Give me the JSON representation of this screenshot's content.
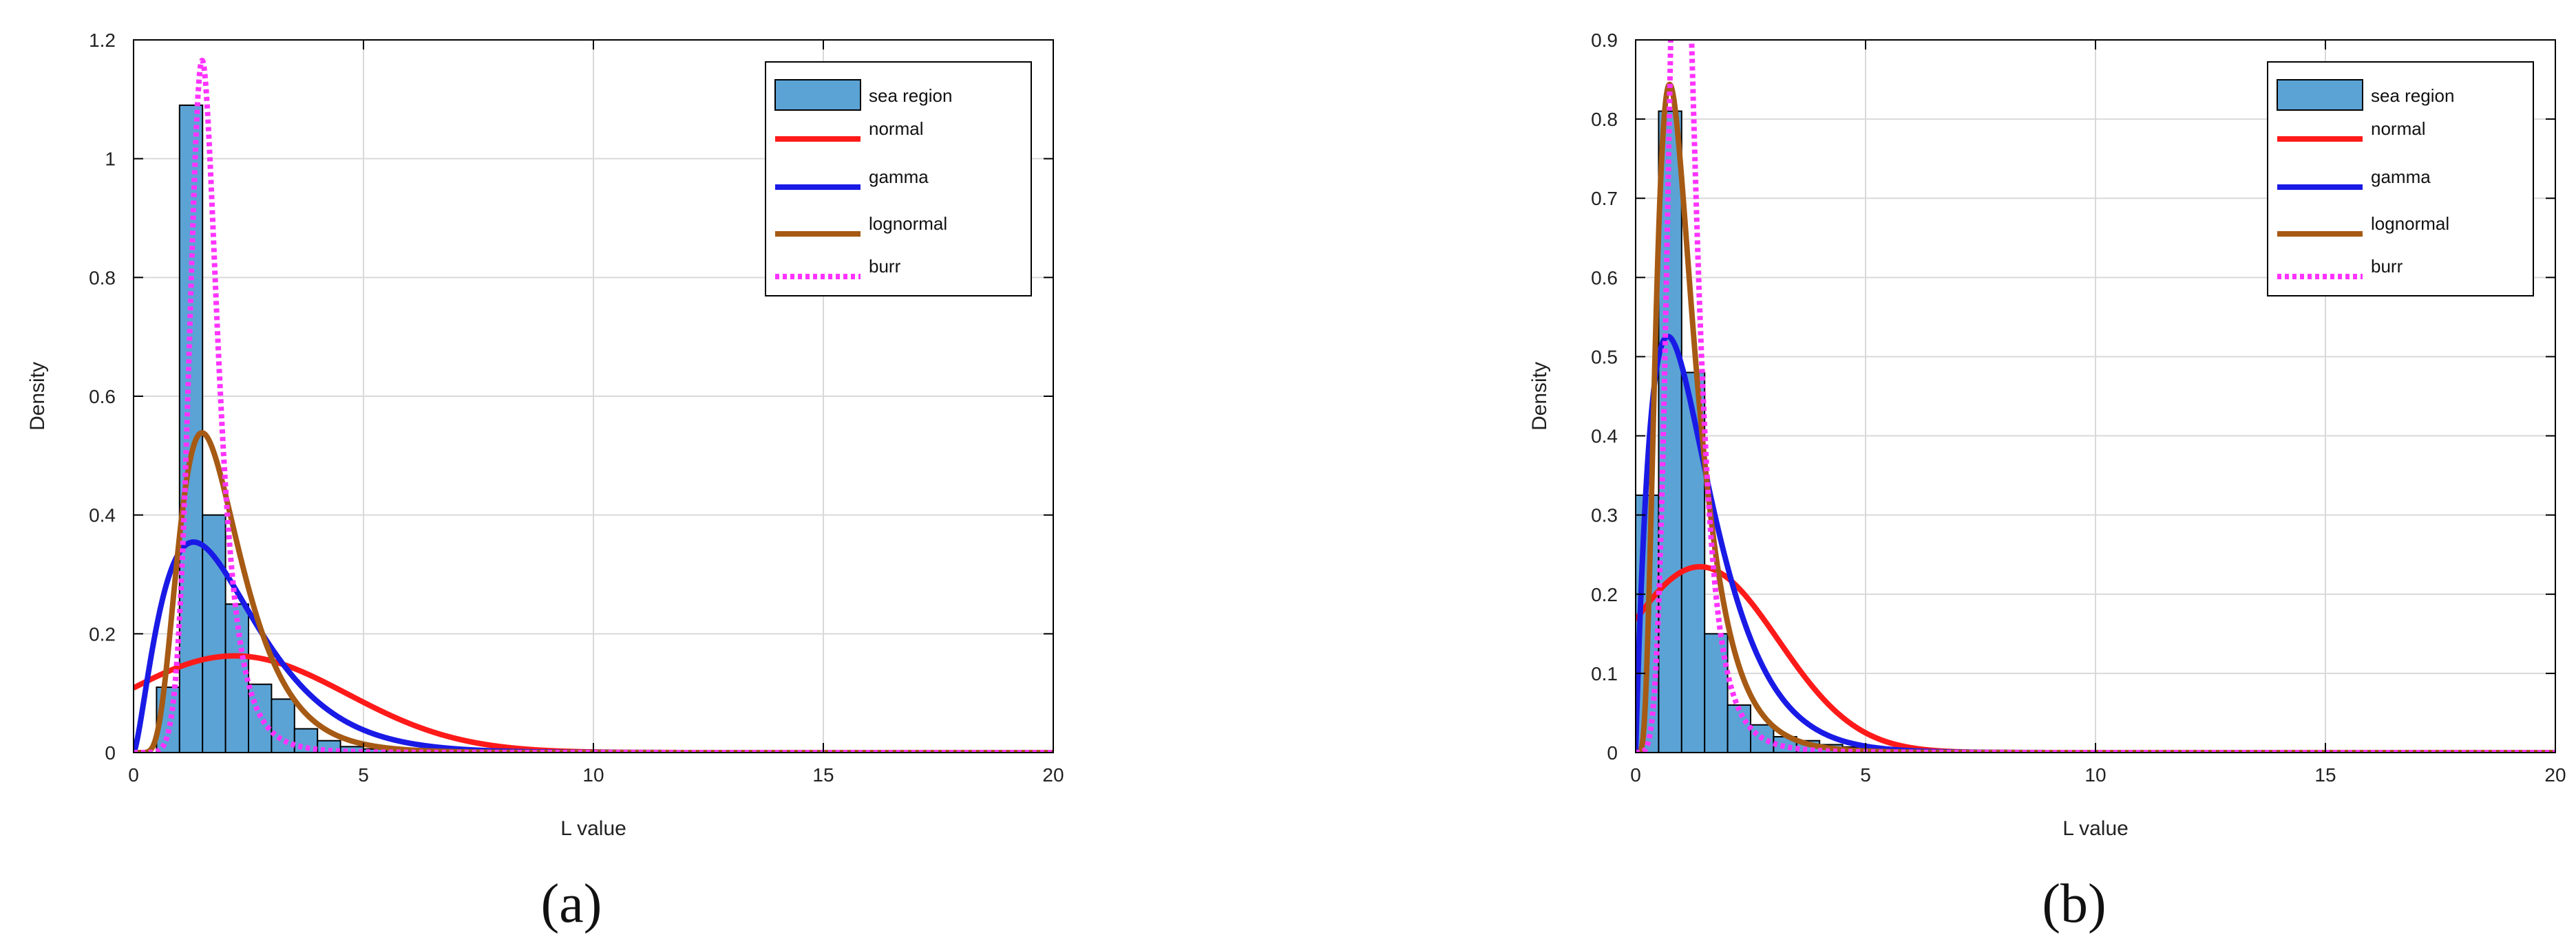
{
  "colors": {
    "hist_fill": "#5BA3D5",
    "hist_edge": "#000000",
    "normal": "#FF1A1A",
    "gamma": "#1A1AE6",
    "lognormal": "#A65A14",
    "burr": "#FF33FF",
    "grid": "#D9D9D9"
  },
  "chart_data": [
    {
      "type": "bar",
      "panel_label": "(a)",
      "xlabel": "L value",
      "ylabel": "Density",
      "xlim": [
        0,
        20
      ],
      "ylim": [
        0,
        1.2
      ],
      "xticks": [
        0,
        5,
        10,
        15,
        20
      ],
      "yticks": [
        0,
        0.2,
        0.4,
        0.6,
        0.8,
        1,
        1.2
      ],
      "xtick_labels": [
        "0",
        "5",
        "10",
        "15",
        "20"
      ],
      "ytick_labels": [
        "0",
        "0.2",
        "0.4",
        "0.6",
        "0.8",
        "1",
        "1.2"
      ],
      "grid": true,
      "legend_position": "top-right",
      "histogram": {
        "name": "sea region",
        "bin_edges": [
          0,
          0.5,
          1.0,
          1.5,
          2.0,
          2.5,
          3.0,
          3.5,
          4.0,
          4.5,
          5.0,
          5.5,
          6.0,
          6.5,
          7.0
        ],
        "density": [
          0.0,
          0.11,
          1.09,
          0.4,
          0.25,
          0.115,
          0.09,
          0.04,
          0.02,
          0.01,
          0.006,
          0.004,
          0.002,
          0.001
        ]
      },
      "curves": [
        {
          "name": "normal",
          "dist": "normal",
          "mu": 2.2,
          "sigma": 2.45
        },
        {
          "name": "gamma",
          "dist": "gamma",
          "k": 2.5,
          "theta": 0.87
        },
        {
          "name": "lognormal",
          "dist": "lognormal",
          "mu": 0.6,
          "sigma": 0.45
        },
        {
          "name": "burr",
          "dist": "burr",
          "alpha": 1.48,
          "c": 8.0,
          "k": 0.7
        }
      ]
    },
    {
      "type": "bar",
      "panel_label": "(b)",
      "xlabel": "L value",
      "ylabel": "Density",
      "xlim": [
        0,
        20
      ],
      "ylim": [
        0,
        0.9
      ],
      "xticks": [
        0,
        5,
        10,
        15,
        20
      ],
      "yticks": [
        0,
        0.1,
        0.2,
        0.3,
        0.4,
        0.5,
        0.6,
        0.7,
        0.8,
        0.9
      ],
      "xtick_labels": [
        "0",
        "5",
        "10",
        "15",
        "20"
      ],
      "ytick_labels": [
        "0",
        "0.1",
        "0.2",
        "0.3",
        "0.4",
        "0.5",
        "0.6",
        "0.7",
        "0.8",
        "0.9"
      ],
      "grid": true,
      "legend_position": "top-right",
      "histogram": {
        "name": "sea region",
        "bin_edges": [
          0,
          0.5,
          1.0,
          1.5,
          2.0,
          2.5,
          3.0,
          3.5,
          4.0,
          4.5,
          5.0,
          5.5,
          6.0
        ],
        "density": [
          0.325,
          0.81,
          0.48,
          0.15,
          0.06,
          0.035,
          0.02,
          0.015,
          0.01,
          0.007,
          0.004,
          0.002
        ]
      },
      "curves": [
        {
          "name": "normal",
          "dist": "normal",
          "mu": 1.4,
          "sigma": 1.7
        },
        {
          "name": "gamma",
          "dist": "gamma",
          "k": 2.0,
          "theta": 0.7
        },
        {
          "name": "lognormal",
          "dist": "lognormal",
          "mu": 0.0,
          "sigma": 0.55
        },
        {
          "name": "burr",
          "dist": "burr",
          "alpha": 1.0,
          "c": 5.5,
          "k": 0.8
        }
      ]
    }
  ]
}
